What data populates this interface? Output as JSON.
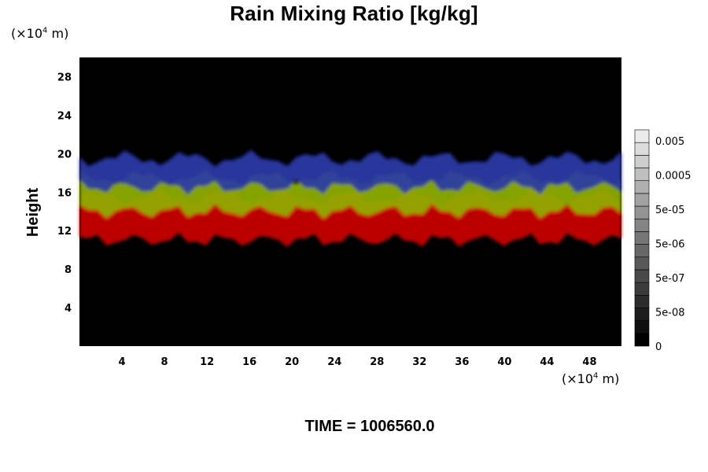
{
  "chart_data": {
    "type": "heatmap",
    "title": "Rain Mixing Ratio [kg/kg]",
    "ylabel": "Height",
    "y_unit": "(×10⁴ m)",
    "x_unit": "(×10⁴ m)",
    "xlim": [
      0,
      51
    ],
    "ylim": [
      0,
      30
    ],
    "xticks": [
      4,
      8,
      12,
      16,
      20,
      24,
      28,
      32,
      36,
      40,
      44,
      48
    ],
    "yticks": [
      4,
      8,
      12,
      16,
      20,
      24,
      28
    ],
    "footer": "TIME = 1006560.0",
    "background_color": "#000000",
    "layers": [
      {
        "color": "#cc0000",
        "approx_height_range": [
          11,
          15.5
        ]
      },
      {
        "color": "#8fb000",
        "approx_height_range": [
          14,
          17.5
        ]
      },
      {
        "color": "#2c3aa8",
        "approx_height_range": [
          16.5,
          19.5
        ]
      }
    ],
    "colorbar": {
      "labels": [
        "0.005",
        "0.0005",
        "5e-05",
        "5e-06",
        "5e-07",
        "5e-08",
        "0"
      ],
      "levels": 17,
      "colors": [
        "#000000",
        "#ffffff"
      ]
    }
  }
}
